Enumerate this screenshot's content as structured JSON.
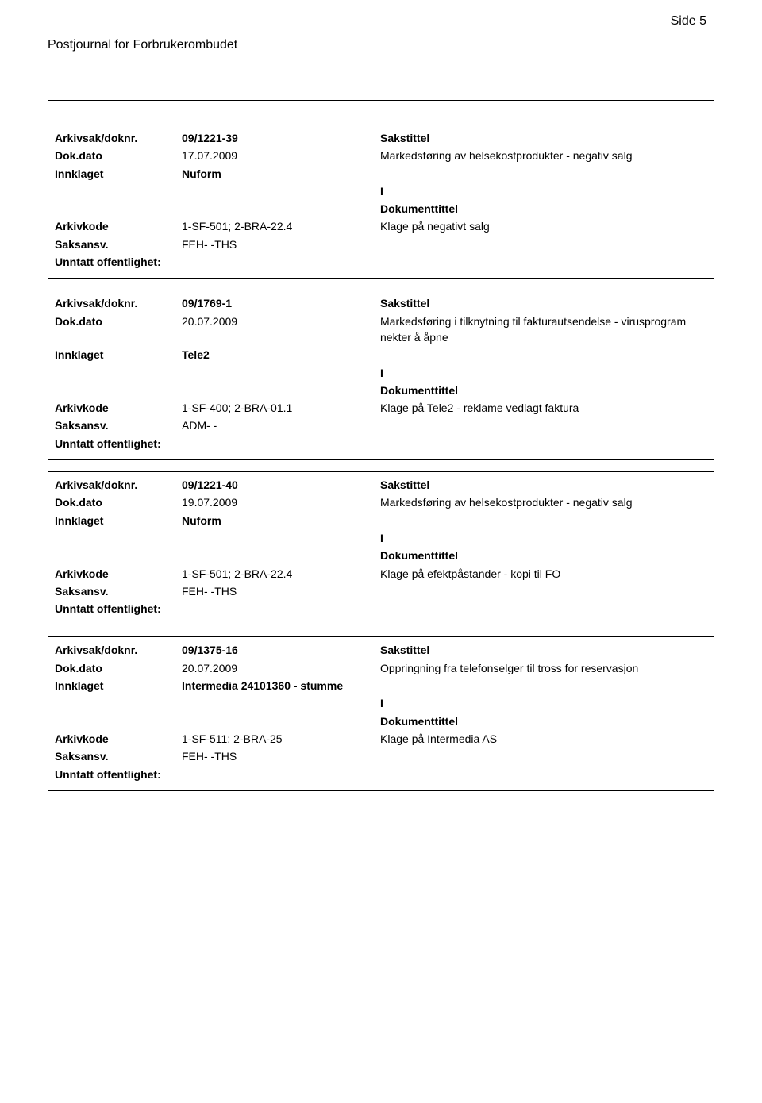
{
  "page_number": "Side 5",
  "journal_title": "Postjournal for Forbrukerombudet",
  "labels": {
    "arkivsak": "Arkivsak/doknr.",
    "dokdato": "Dok.dato",
    "innklaget": "Innklaget",
    "arkivkode": "Arkivkode",
    "saksansv": "Saksansv.",
    "unntatt": "Unntatt offentlighet:",
    "sakstittel": "Sakstittel",
    "dokumenttittel": "Dokumenttittel",
    "io": "I"
  },
  "entries": [
    {
      "arkivsak": "09/1221-39",
      "dokdato": "17.07.2009",
      "sakstittel": "Markedsføring av helsekostprodukter - negativ salg",
      "innklaget": "Nuform",
      "arkivkode": "1-SF-501; 2-BRA-22.4",
      "dokumenttittel": "Klage på negativt salg",
      "saksansv": "FEH- -THS"
    },
    {
      "arkivsak": "09/1769-1",
      "dokdato": "20.07.2009",
      "sakstittel": "Markedsføring i tilknytning til fakturautsendelse - virusprogram nekter å åpne",
      "innklaget": "Tele2",
      "arkivkode": "1-SF-400; 2-BRA-01.1",
      "dokumenttittel": "Klage på Tele2 - reklame vedlagt faktura",
      "saksansv": "ADM- -"
    },
    {
      "arkivsak": "09/1221-40",
      "dokdato": "19.07.2009",
      "sakstittel": "Markedsføring av helsekostprodukter - negativ salg",
      "innklaget": "Nuform",
      "arkivkode": "1-SF-501; 2-BRA-22.4",
      "dokumenttittel": "Klage på efektpåstander - kopi til FO",
      "saksansv": "FEH- -THS"
    },
    {
      "arkivsak": "09/1375-16",
      "dokdato": "20.07.2009",
      "sakstittel": "Oppringning fra telefonselger til tross for reservasjon",
      "innklaget": "Intermedia 24101360 - stumme",
      "arkivkode": "1-SF-511; 2-BRA-25",
      "dokumenttittel": "Klage på Intermedia AS",
      "saksansv": "FEH- -THS"
    }
  ]
}
